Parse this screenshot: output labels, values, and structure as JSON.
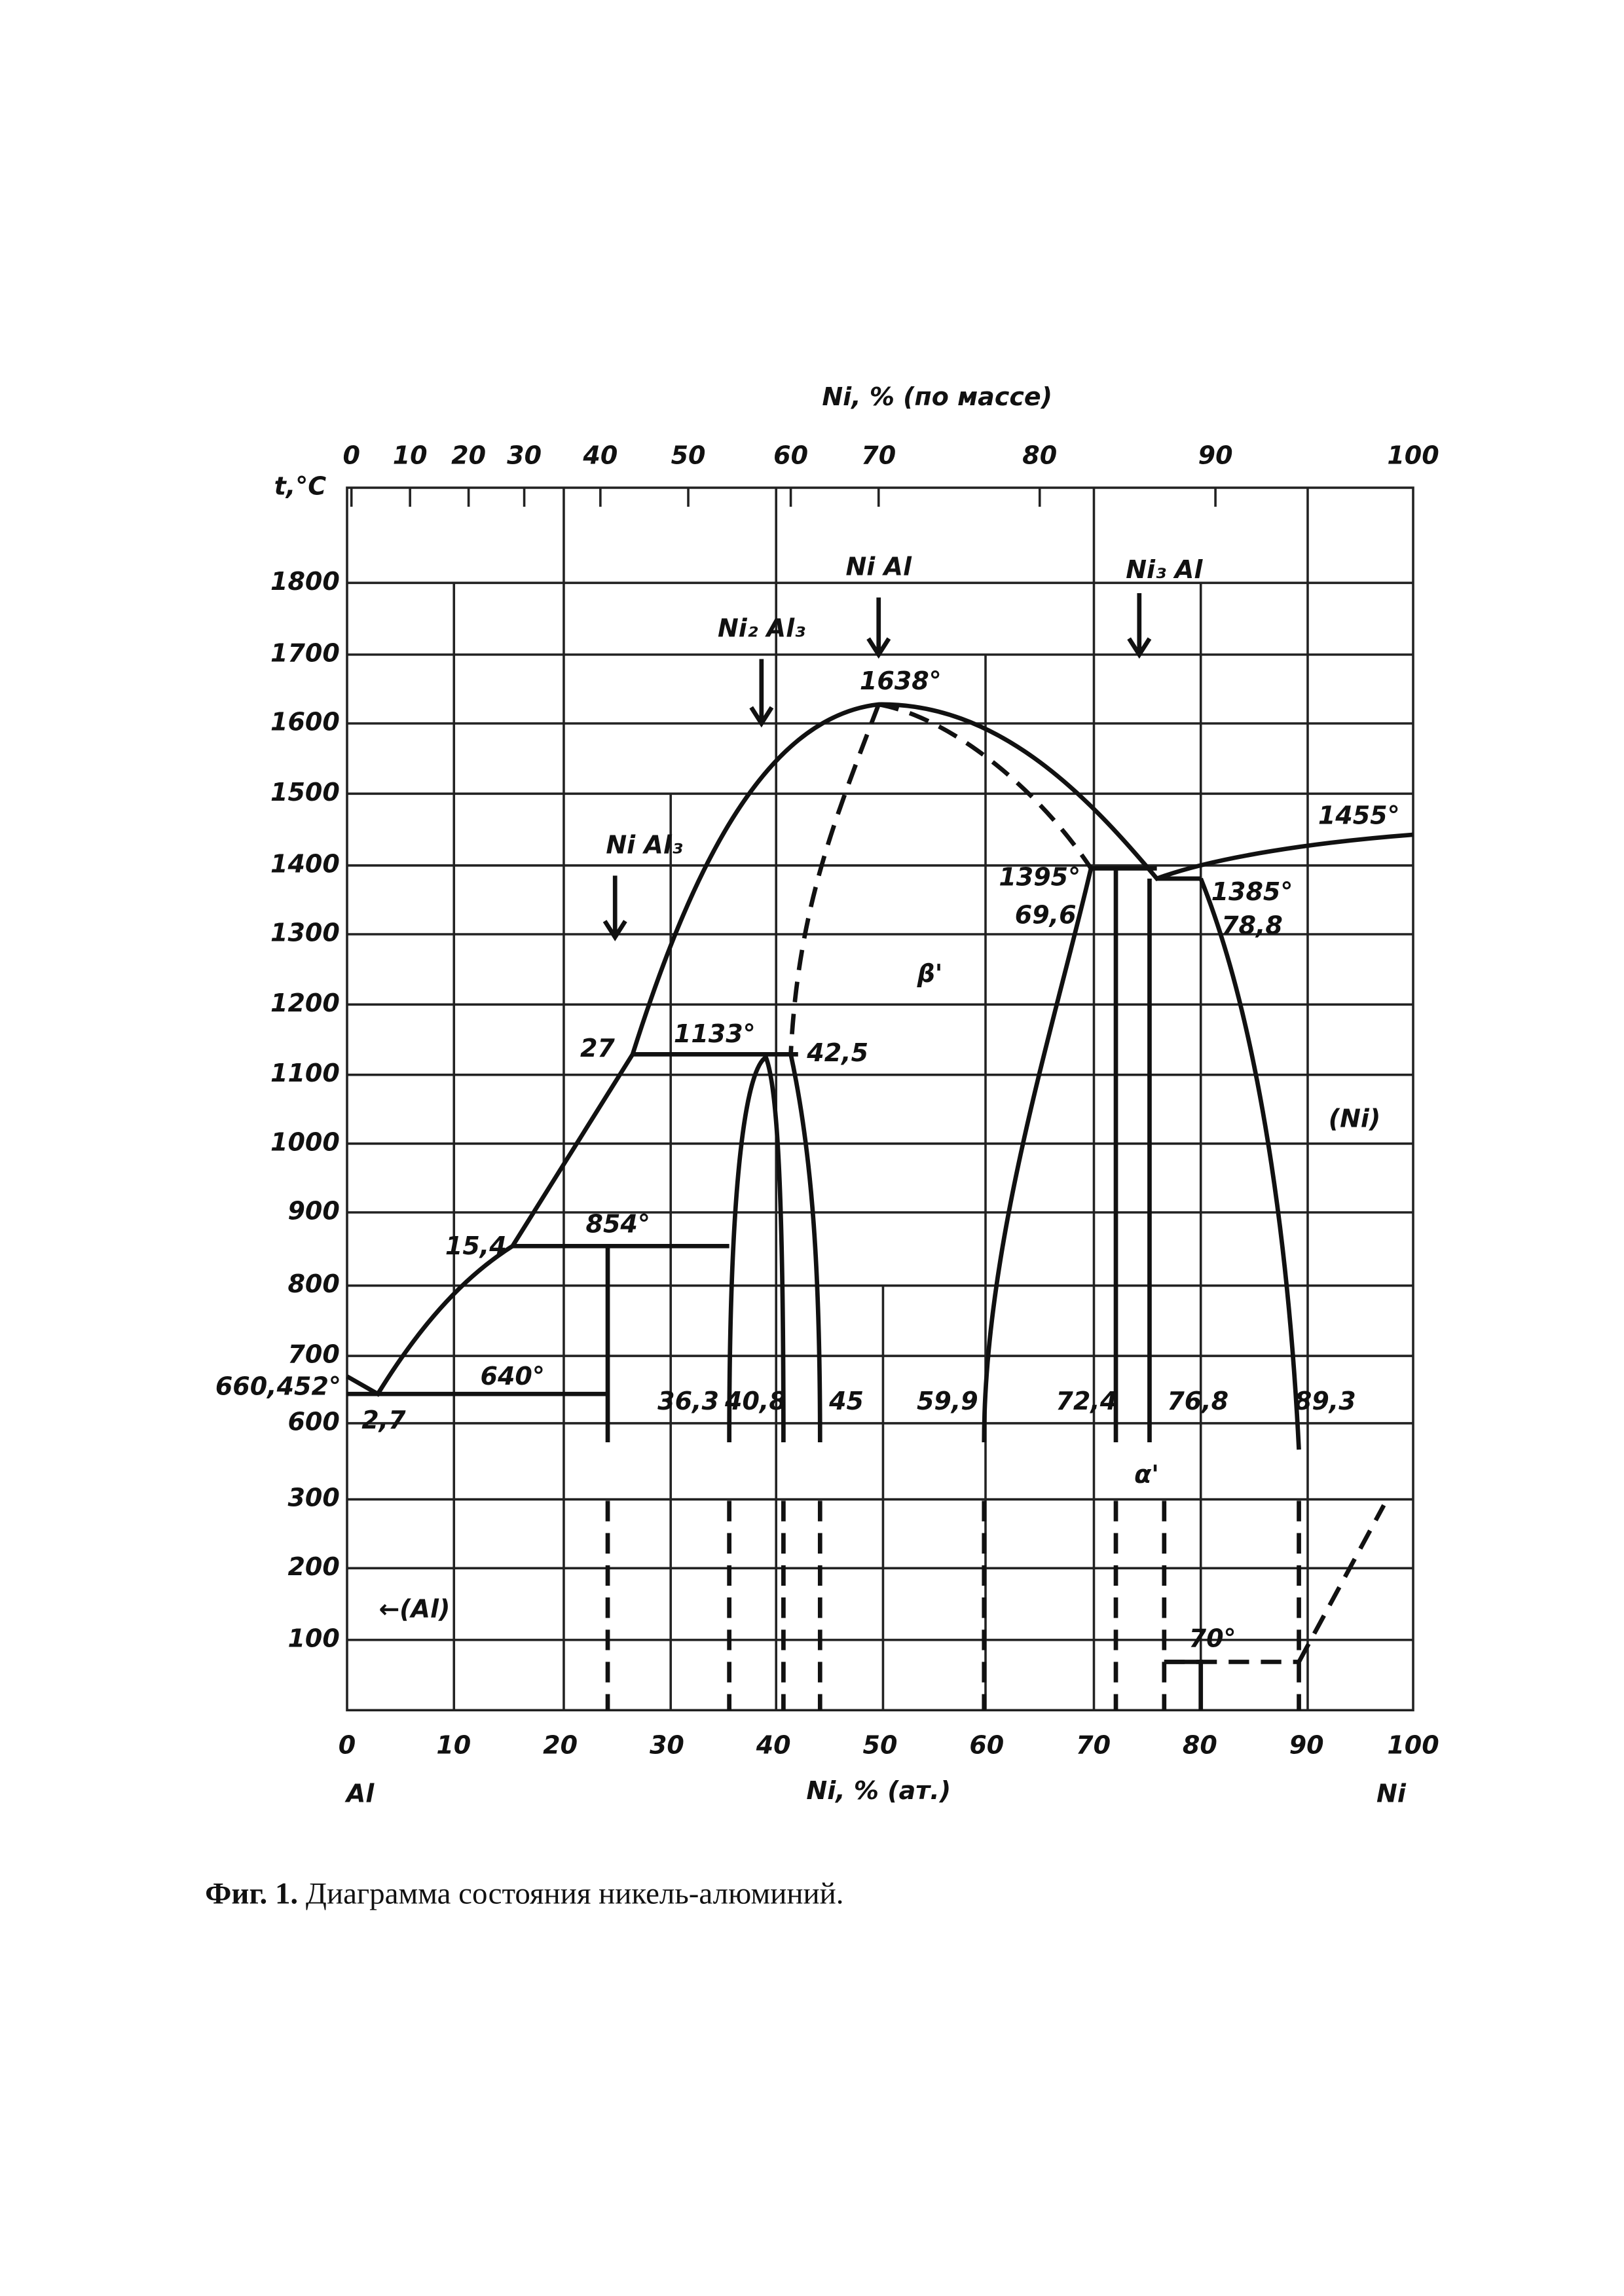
{
  "top_axis": {
    "title": "Ni, % (по массе)",
    "ticks": [
      "0",
      "10",
      "20",
      "30",
      "40",
      "50",
      "60",
      "70",
      "80",
      "90",
      "100"
    ]
  },
  "left_axis": {
    "title": "t,°C",
    "ticks": [
      "1800",
      "1700",
      "1600",
      "1500",
      "1400",
      "1300",
      "1200",
      "1100",
      "1000",
      "900",
      "800",
      "700",
      "600",
      "300",
      "200",
      "100"
    ]
  },
  "bottom_axis": {
    "title": "Ni, % (ат.)",
    "ticks": [
      "0",
      "10",
      "20",
      "30",
      "40",
      "50",
      "60",
      "70",
      "80",
      "90",
      "100"
    ],
    "left_end": "Al",
    "right_end": "Ni"
  },
  "annotations": [
    "Ni Al",
    "Ni₂ Al₃",
    "Ni₃ Al",
    "Ni Al₃",
    "1638°",
    "1455°",
    "1395°",
    "69,6",
    "1385°",
    "78,8",
    "β'",
    "27",
    "1133°",
    "42,5",
    "(Ni)",
    "854°",
    "15,4",
    "640°",
    "660,452°",
    "2,7",
    "36,3",
    "40,8",
    "45",
    "59,9",
    "72,4",
    "76,8",
    "89,3",
    "α'",
    "←(Al)",
    "70°"
  ],
  "caption": {
    "label": "Фиг. 1.",
    "text": "Диаграмма состояния никель-алюминий."
  }
}
